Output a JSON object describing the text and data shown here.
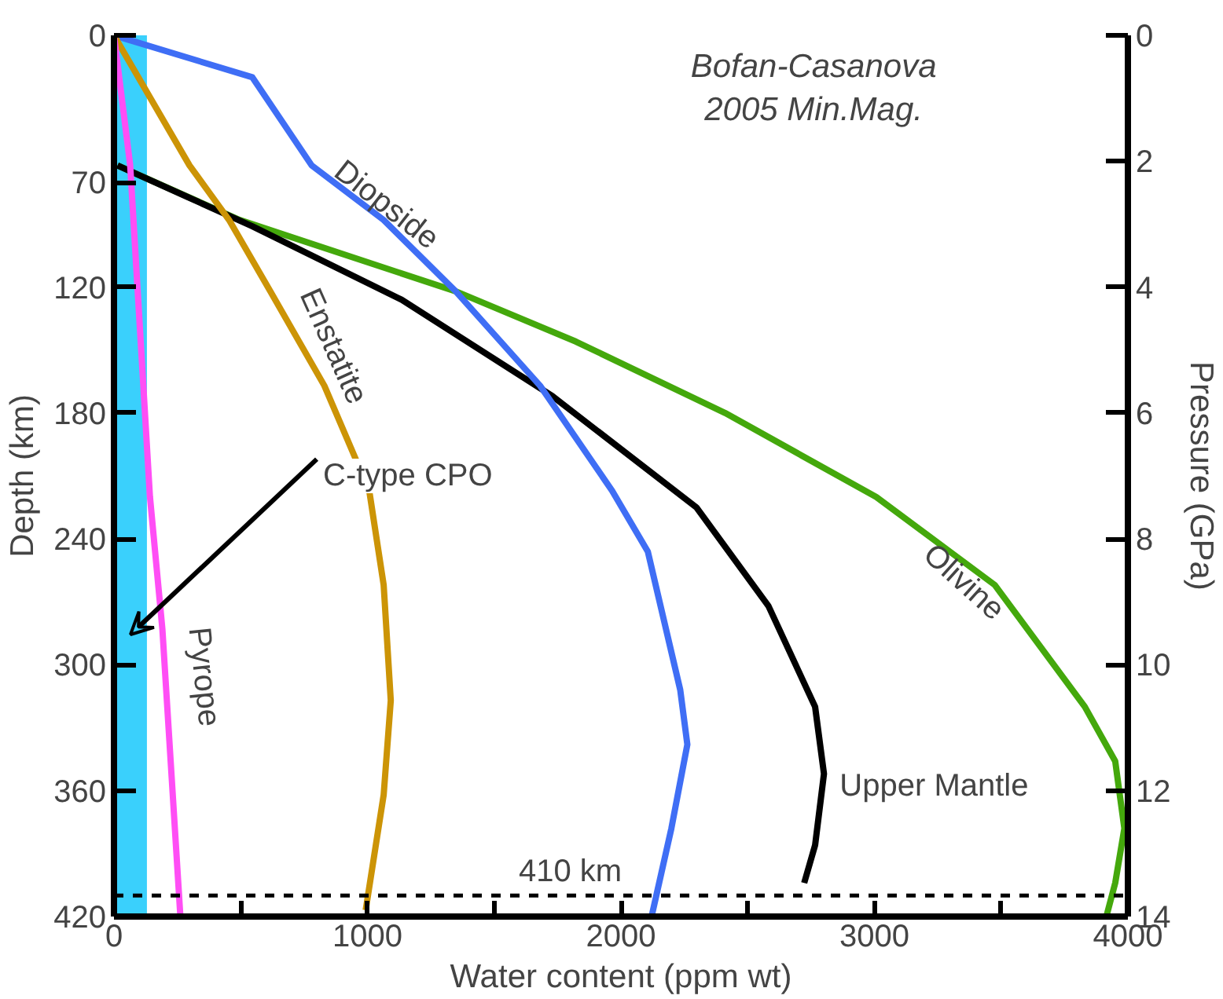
{
  "chart_data": {
    "type": "line",
    "xlabel": "Water content (ppm wt)",
    "ylabel": "Depth (km)",
    "y2label": "Pressure (GPa)",
    "xlim": [
      0,
      4000
    ],
    "ylim": [
      420,
      0
    ],
    "y2lim": [
      14,
      0
    ],
    "xticks": [
      0,
      {
        "value": 500,
        "label": null
      },
      1000,
      {
        "value": 1500,
        "label": null
      },
      2000,
      {
        "value": 2500,
        "label": null
      },
      3000,
      {
        "value": 3500,
        "label": null
      },
      4000
    ],
    "yticks": [
      0,
      70,
      120,
      180,
      240,
      300,
      360,
      420
    ],
    "y2ticks": [
      0,
      2,
      4,
      6,
      8,
      10,
      12,
      14
    ],
    "grid": false,
    "line_style": "solid",
    "series": [
      {
        "name": "Olivine",
        "color": "#44a80c",
        "x": [
          14,
          496,
          1348,
          1823,
          2411,
          3007,
          3475,
          3830,
          3950,
          3986,
          3950,
          3915
        ],
        "values": [
          62,
          88,
          122,
          146,
          180,
          220,
          262,
          320,
          346,
          378,
          404,
          420
        ]
      },
      {
        "name": "Upper Mantle",
        "color": "#000000",
        "x": [
          14,
          546,
          1135,
          1730,
          2298,
          2582,
          2766,
          2801,
          2766,
          2723
        ],
        "values": [
          62,
          91,
          126,
          172,
          225,
          272,
          320,
          352,
          386,
          404
        ]
      },
      {
        "name": "Diopside",
        "color": "#3f6ef5",
        "x": [
          0,
          546,
          780,
          1064,
          1348,
          1681,
          1965,
          2106,
          2234,
          2262,
          2199,
          2121
        ],
        "values": [
          0,
          20,
          62,
          88,
          122,
          167,
          217,
          246,
          312,
          338,
          378,
          420
        ]
      },
      {
        "name": "Enstatite",
        "color": "#cc9406",
        "x": [
          0,
          298,
          454,
          617,
          830,
          1007,
          1064,
          1092,
          1064,
          993
        ],
        "values": [
          0,
          62,
          88,
          122,
          167,
          217,
          262,
          317,
          362,
          417
        ]
      },
      {
        "name": "Pyrope",
        "color": "#ff4ef5",
        "x": [
          0,
          64,
          142,
          191,
          262
        ],
        "values": [
          0,
          62,
          220,
          283,
          420
        ]
      }
    ],
    "bands": [
      {
        "axis": "x",
        "from": 0,
        "to": 130,
        "label": "C-type CPO",
        "color": "#3ad0fc"
      }
    ],
    "ref_lines": [
      {
        "axis": "y",
        "value": 410,
        "label": "410 km",
        "color": "#000000",
        "line_style": "dashed"
      }
    ],
    "annotations": [
      "Bofan-Casanova 2005 Min.Mag."
    ]
  }
}
